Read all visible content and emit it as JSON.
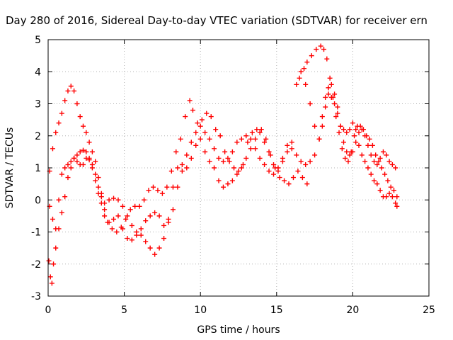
{
  "chart_data": {
    "type": "scatter",
    "title": "Day 280 of 2016, Sidereal Day-to-day VTEC variation (SDTVAR) for receiver ern",
    "xlabel": "GPS time / hours",
    "ylabel": "SDTVAR / TECUs",
    "xlim": [
      0,
      25
    ],
    "ylim": [
      -3,
      5
    ],
    "xticks": [
      "0",
      "5",
      "10",
      "15",
      "20",
      "25"
    ],
    "yticks": [
      "-3",
      "-2",
      "-1",
      "0",
      "1",
      "2",
      "3",
      "4",
      "5"
    ],
    "grid": true,
    "legend": "none",
    "marker": "+",
    "color": "#ff0000",
    "series": [
      {
        "points": [
          [
            0.1,
            0.9
          ],
          [
            0.3,
            1.6
          ],
          [
            0.5,
            2.1
          ],
          [
            0.7,
            2.4
          ],
          [
            0.9,
            2.7
          ],
          [
            1.1,
            3.1
          ],
          [
            1.3,
            3.4
          ],
          [
            1.5,
            3.55
          ],
          [
            1.7,
            3.4
          ],
          [
            1.9,
            3.0
          ],
          [
            2.1,
            2.6
          ],
          [
            2.3,
            2.3
          ],
          [
            2.5,
            2.1
          ],
          [
            2.7,
            1.8
          ],
          [
            2.9,
            1.5
          ],
          [
            3.1,
            1.2
          ],
          [
            3.3,
            0.7
          ],
          [
            3.5,
            0.2
          ],
          [
            3.7,
            -0.3
          ],
          [
            3.9,
            -0.7
          ],
          [
            4.2,
            -0.9
          ],
          [
            4.5,
            -1.0
          ],
          [
            4.8,
            -0.85
          ],
          [
            5.1,
            -0.6
          ],
          [
            5.4,
            -0.3
          ],
          [
            5.7,
            -0.2
          ],
          [
            6.0,
            -0.2
          ],
          [
            6.3,
            0.0
          ],
          [
            6.6,
            0.3
          ],
          [
            6.9,
            0.4
          ],
          [
            7.2,
            0.3
          ],
          [
            7.5,
            0.2
          ],
          [
            7.8,
            0.4
          ],
          [
            8.1,
            0.9
          ],
          [
            8.4,
            1.5
          ],
          [
            8.7,
            1.9
          ],
          [
            9.0,
            2.6
          ],
          [
            9.3,
            3.1
          ],
          [
            9.5,
            2.8
          ],
          [
            9.8,
            2.4
          ],
          [
            10.1,
            2.5
          ],
          [
            10.4,
            2.7
          ],
          [
            10.7,
            2.6
          ],
          [
            11.0,
            2.2
          ],
          [
            11.3,
            2.0
          ],
          [
            11.6,
            1.5
          ],
          [
            11.9,
            1.2
          ],
          [
            12.2,
            1.0
          ],
          [
            12.5,
            0.9
          ],
          [
            12.8,
            1.1
          ],
          [
            13.1,
            1.8
          ],
          [
            13.4,
            2.1
          ],
          [
            13.7,
            2.2
          ],
          [
            14.0,
            2.2
          ],
          [
            14.3,
            1.9
          ],
          [
            14.6,
            1.4
          ],
          [
            14.9,
            1.0
          ],
          [
            15.2,
            0.7
          ],
          [
            15.5,
            0.6
          ],
          [
            15.8,
            0.5
          ],
          [
            16.1,
            0.7
          ],
          [
            16.4,
            0.9
          ],
          [
            16.7,
            0.7
          ],
          [
            17.0,
            0.5
          ]
        ]
      },
      {
        "points": [
          [
            0.1,
            -0.2
          ],
          [
            0.3,
            -0.6
          ],
          [
            0.5,
            -0.9
          ],
          [
            0.7,
            0.0
          ],
          [
            0.9,
            0.8
          ],
          [
            1.1,
            1.0
          ],
          [
            1.3,
            1.1
          ],
          [
            1.5,
            1.2
          ],
          [
            1.7,
            1.3
          ],
          [
            1.9,
            1.4
          ],
          [
            2.1,
            1.5
          ],
          [
            2.3,
            1.55
          ],
          [
            2.5,
            1.5
          ],
          [
            2.7,
            1.3
          ],
          [
            2.9,
            1.1
          ],
          [
            3.1,
            0.8
          ],
          [
            3.3,
            0.4
          ],
          [
            3.5,
            0.1
          ],
          [
            3.7,
            -0.1
          ],
          [
            4.0,
            0.0
          ],
          [
            4.3,
            0.05
          ],
          [
            4.6,
            0.0
          ],
          [
            4.9,
            -0.2
          ],
          [
            5.2,
            -0.5
          ],
          [
            5.5,
            -0.8
          ],
          [
            5.8,
            -1.0
          ],
          [
            6.1,
            -1.1
          ],
          [
            6.4,
            -1.3
          ],
          [
            6.7,
            -1.5
          ],
          [
            7.0,
            -1.7
          ],
          [
            7.3,
            -1.5
          ],
          [
            7.6,
            -1.2
          ],
          [
            7.9,
            -0.6
          ],
          [
            8.2,
            0.4
          ],
          [
            8.5,
            1.0
          ],
          [
            8.8,
            1.1
          ],
          [
            9.1,
            1.4
          ],
          [
            9.4,
            1.8
          ],
          [
            9.7,
            2.1
          ],
          [
            10.0,
            2.3
          ],
          [
            10.3,
            2.1
          ],
          [
            10.6,
            1.9
          ],
          [
            10.9,
            1.6
          ],
          [
            11.2,
            1.3
          ],
          [
            11.5,
            1.2
          ],
          [
            11.8,
            1.3
          ],
          [
            12.1,
            1.5
          ],
          [
            12.4,
            1.8
          ],
          [
            12.7,
            1.9
          ],
          [
            13.0,
            2.0
          ],
          [
            13.3,
            1.9
          ],
          [
            13.6,
            1.6
          ],
          [
            13.9,
            1.3
          ],
          [
            14.2,
            1.1
          ],
          [
            14.5,
            0.9
          ],
          [
            14.8,
            0.8
          ],
          [
            15.1,
            0.9
          ],
          [
            15.4,
            1.2
          ],
          [
            15.7,
            1.5
          ],
          [
            16.0,
            1.6
          ],
          [
            16.3,
            1.4
          ],
          [
            16.6,
            1.2
          ],
          [
            16.9,
            1.1
          ],
          [
            17.2,
            1.2
          ],
          [
            17.5,
            1.4
          ],
          [
            17.8,
            1.9
          ],
          [
            18.0,
            2.6
          ],
          [
            18.2,
            3.2
          ],
          [
            18.4,
            3.5
          ],
          [
            18.6,
            3.6
          ],
          [
            18.8,
            3.3
          ],
          [
            19.0,
            2.9
          ],
          [
            19.2,
            2.3
          ],
          [
            19.4,
            1.8
          ],
          [
            19.6,
            1.5
          ],
          [
            19.8,
            1.4
          ],
          [
            20.0,
            1.5
          ],
          [
            20.2,
            1.8
          ],
          [
            20.4,
            2.1
          ],
          [
            20.6,
            2.2
          ],
          [
            20.8,
            2.0
          ],
          [
            21.0,
            1.7
          ],
          [
            21.2,
            1.4
          ],
          [
            21.4,
            1.2
          ],
          [
            21.6,
            1.1
          ],
          [
            21.8,
            1.3
          ],
          [
            22.0,
            1.5
          ],
          [
            22.2,
            1.4
          ],
          [
            22.4,
            1.2
          ],
          [
            22.6,
            1.1
          ],
          [
            22.8,
            1.0
          ]
        ]
      },
      {
        "points": [
          [
            0.05,
            -1.9
          ],
          [
            0.15,
            -2.4
          ],
          [
            0.25,
            -2.6
          ],
          [
            0.35,
            -2.0
          ],
          [
            0.5,
            -1.5
          ],
          [
            0.7,
            -0.9
          ],
          [
            0.9,
            -0.4
          ],
          [
            1.1,
            0.1
          ],
          [
            1.3,
            0.7
          ],
          [
            1.5,
            1.0
          ],
          [
            1.7,
            1.3
          ],
          [
            1.9,
            1.2
          ],
          [
            2.1,
            1.1
          ],
          [
            2.3,
            1.1
          ],
          [
            2.5,
            1.3
          ],
          [
            2.7,
            1.25
          ],
          [
            2.9,
            1.0
          ],
          [
            3.1,
            0.6
          ],
          [
            3.3,
            0.2
          ],
          [
            3.5,
            -0.1
          ],
          [
            3.7,
            -0.5
          ],
          [
            4.0,
            -0.7
          ],
          [
            4.3,
            -0.6
          ],
          [
            4.6,
            -0.5
          ],
          [
            4.9,
            -0.9
          ],
          [
            5.2,
            -1.2
          ],
          [
            5.5,
            -1.25
          ],
          [
            5.8,
            -1.1
          ],
          [
            6.1,
            -0.9
          ],
          [
            6.4,
            -0.65
          ],
          [
            6.7,
            -0.5
          ],
          [
            7.0,
            -0.4
          ],
          [
            7.3,
            -0.5
          ],
          [
            7.6,
            -0.8
          ],
          [
            7.9,
            -0.7
          ],
          [
            8.2,
            -0.3
          ],
          [
            8.5,
            0.4
          ],
          [
            8.8,
            0.9
          ],
          [
            9.1,
            1.0
          ],
          [
            9.4,
            1.3
          ],
          [
            9.7,
            1.7
          ],
          [
            10.0,
            1.9
          ],
          [
            10.3,
            1.5
          ],
          [
            10.6,
            1.2
          ],
          [
            10.9,
            1.0
          ],
          [
            11.2,
            0.6
          ],
          [
            11.5,
            0.4
          ],
          [
            11.8,
            0.5
          ],
          [
            12.1,
            0.6
          ],
          [
            12.4,
            0.8
          ],
          [
            12.7,
            1.0
          ],
          [
            13.0,
            1.3
          ],
          [
            13.3,
            1.6
          ],
          [
            13.6,
            1.9
          ],
          [
            13.9,
            2.1
          ],
          [
            14.2,
            1.8
          ],
          [
            14.5,
            1.5
          ],
          [
            14.8,
            1.1
          ],
          [
            15.1,
            1.0
          ],
          [
            15.4,
            1.3
          ],
          [
            15.7,
            1.7
          ],
          [
            16.0,
            1.8
          ],
          [
            16.3,
            3.6
          ],
          [
            16.6,
            4.0
          ],
          [
            16.9,
            3.6
          ],
          [
            17.2,
            3.0
          ],
          [
            17.5,
            2.3
          ],
          [
            17.8,
            1.9
          ],
          [
            18.0,
            2.3
          ],
          [
            18.2,
            2.9
          ],
          [
            18.4,
            3.3
          ],
          [
            18.6,
            3.2
          ],
          [
            18.8,
            3.0
          ],
          [
            19.0,
            2.7
          ],
          [
            19.2,
            2.3
          ],
          [
            19.4,
            2.2
          ],
          [
            19.6,
            2.1
          ],
          [
            19.8,
            2.2
          ],
          [
            20.0,
            2.4
          ],
          [
            20.2,
            2.2
          ],
          [
            20.4,
            1.7
          ],
          [
            20.6,
            1.4
          ],
          [
            20.8,
            1.2
          ],
          [
            21.0,
            1.0
          ],
          [
            21.2,
            0.8
          ],
          [
            21.4,
            0.6
          ],
          [
            21.6,
            0.5
          ],
          [
            21.8,
            0.3
          ],
          [
            22.0,
            0.1
          ],
          [
            22.2,
            0.1
          ],
          [
            22.4,
            0.2
          ],
          [
            22.6,
            0.1
          ],
          [
            22.8,
            -0.1
          ],
          [
            22.9,
            -0.2
          ]
        ]
      },
      {
        "points": [
          [
            16.5,
            3.8
          ],
          [
            16.8,
            4.1
          ],
          [
            17.0,
            4.3
          ],
          [
            17.3,
            4.5
          ],
          [
            17.6,
            4.7
          ],
          [
            17.9,
            4.8
          ],
          [
            18.1,
            4.7
          ],
          [
            18.3,
            4.4
          ],
          [
            18.5,
            3.8
          ],
          [
            18.7,
            3.2
          ],
          [
            18.9,
            2.6
          ],
          [
            19.1,
            2.1
          ],
          [
            19.3,
            1.6
          ],
          [
            19.5,
            1.3
          ],
          [
            19.7,
            1.2
          ],
          [
            19.9,
            1.5
          ],
          [
            20.1,
            2.0
          ],
          [
            20.3,
            2.3
          ],
          [
            20.5,
            2.3
          ],
          [
            20.7,
            2.2
          ],
          [
            20.9,
            2.0
          ],
          [
            21.1,
            1.9
          ],
          [
            21.3,
            1.7
          ],
          [
            21.5,
            1.4
          ],
          [
            21.7,
            1.2
          ],
          [
            21.9,
            1.0
          ],
          [
            22.1,
            0.8
          ],
          [
            22.3,
            0.6
          ],
          [
            22.5,
            0.4
          ],
          [
            22.7,
            0.3
          ],
          [
            22.9,
            0.1
          ]
        ]
      }
    ]
  }
}
